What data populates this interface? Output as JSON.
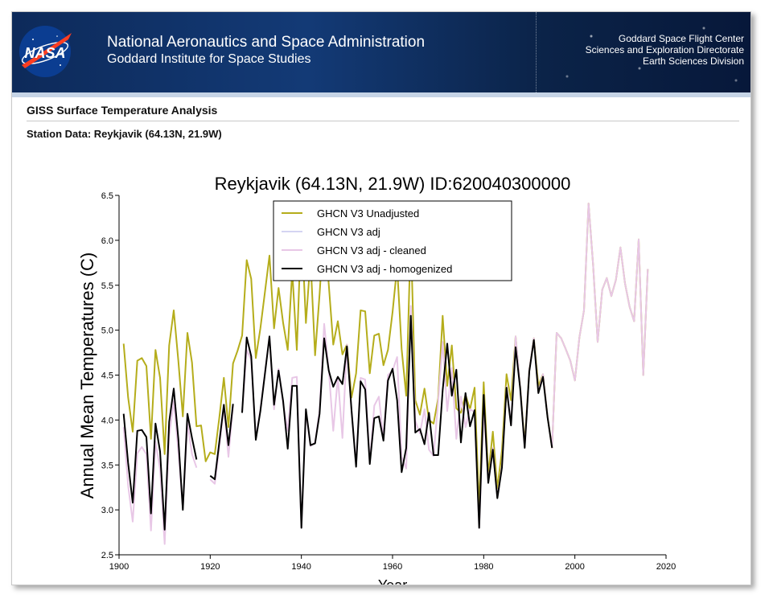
{
  "header": {
    "logo_text": "NASA",
    "org_line1": "National Aeronautics and Space Administration",
    "org_line2": "Goddard Institute for Space Studies",
    "right_line1": "Goddard Space Flight Center",
    "right_line2": "Sciences and Exploration Directorate",
    "right_line3": "Earth Sciences Division"
  },
  "page": {
    "section_title": "GISS Surface Temperature Analysis",
    "station_label": "Station Data: Reykjavik (64.13N, 21.9W)"
  },
  "colors": {
    "unadjusted": "#b5ad1b",
    "adj": "#d4d4f2",
    "cleaned": "#e8c7e6",
    "homogenized": "#000000"
  },
  "chart_data": {
    "type": "line",
    "title": "Reykjavik (64.13N, 21.9W) ID:620040300000",
    "xlabel": "Year",
    "ylabel": "Annual Mean Temperatures (C)",
    "xlim": [
      1900,
      2020
    ],
    "ylim": [
      2.5,
      6.5
    ],
    "xticks": [
      "1900",
      "1920",
      "1940",
      "1960",
      "1980",
      "2000",
      "2020"
    ],
    "yticks": [
      "2.5",
      "3.0",
      "3.5",
      "4.0",
      "4.5",
      "5.0",
      "5.5",
      "6.0",
      "6.5"
    ],
    "legend_position": "top-center",
    "series": [
      {
        "name": "GHCN V3 Unadjusted",
        "color": "#b5ad1b",
        "width": 2,
        "x": [
          1901,
          1902,
          1903,
          1904,
          1905,
          1906,
          1907,
          1908,
          1909,
          1910,
          1911,
          1912,
          1913,
          1914,
          1915,
          1916,
          1917,
          1918,
          1919,
          1920,
          1921,
          1922,
          1923,
          1924,
          1925,
          1926,
          1927,
          1928,
          1929,
          1930,
          1931,
          1932,
          1933,
          1934,
          1935,
          1936,
          1937,
          1938,
          1939,
          1940,
          1941,
          1942,
          1943,
          1944,
          1945,
          1946,
          1947,
          1948,
          1949,
          1950,
          1951,
          1952,
          1953,
          1954,
          1955,
          1956,
          1957,
          1958,
          1959,
          1960,
          1961,
          1962,
          1963,
          1964,
          1965,
          1966,
          1967,
          1968,
          1969,
          1970,
          1971,
          1972,
          1973,
          1974,
          1975,
          1976,
          1977,
          1978,
          1979,
          1980,
          1981,
          1982,
          1983,
          1984,
          1985,
          1986,
          1987,
          1988,
          1989,
          1990,
          1991,
          1992,
          1993,
          1994,
          1995,
          1996,
          1997,
          1998,
          1999,
          2000,
          2001,
          2002,
          2003,
          2004,
          2005,
          2006,
          2007,
          2008,
          2009,
          2010,
          2011,
          2012,
          2013,
          2014,
          2015,
          2016
        ],
        "y": [
          4.85,
          4.25,
          3.87,
          4.66,
          4.69,
          4.6,
          3.79,
          4.78,
          4.47,
          3.62,
          4.83,
          5.22,
          4.66,
          4.04,
          4.97,
          4.64,
          3.93,
          3.94,
          3.54,
          3.64,
          3.62,
          4.03,
          4.47,
          3.92,
          4.63,
          4.77,
          4.94,
          5.78,
          5.57,
          4.69,
          5.02,
          5.42,
          5.83,
          5.02,
          5.47,
          5.08,
          4.78,
          5.66,
          4.78,
          6.2,
          5.08,
          5.8,
          4.72,
          5.4,
          6.2,
          5.51,
          4.84,
          5.1,
          4.73,
          4.84,
          4.25,
          4.52,
          5.22,
          5.21,
          4.52,
          4.94,
          4.96,
          4.61,
          4.78,
          5.2,
          5.71,
          4.79,
          4.27,
          6.07,
          4.22,
          4.06,
          4.35,
          4.0,
          3.96,
          4.24,
          5.16,
          4.38,
          4.83,
          4.13,
          4.08,
          4.28,
          4.12,
          4.36,
          3.01,
          4.42,
          3.39,
          3.87,
          3.24,
          3.66,
          4.51,
          4.22,
          4.93,
          4.37,
          3.74,
          4.56,
          4.91,
          4.38,
          4.51,
          4.04,
          3.69,
          4.97,
          4.91,
          4.79,
          4.66,
          4.44,
          4.92,
          5.22,
          6.41,
          5.73,
          4.87,
          5.45,
          5.58,
          5.38,
          5.56,
          5.92,
          5.52,
          5.26,
          5.1,
          6.01,
          4.5,
          5.68
        ]
      },
      {
        "name": "GHCN V3 adj",
        "color": "#d4d4f2",
        "width": 1.4,
        "x": [
          1901,
          1902,
          1903,
          1904,
          1905,
          1906,
          1907,
          1908,
          1909,
          1910,
          1911,
          1912,
          1913,
          1914,
          1915,
          1916,
          1917,
          1918,
          1919,
          1920,
          1921,
          1922,
          1923,
          1924,
          1925,
          1926,
          1927,
          1928,
          1929,
          1930,
          1931,
          1932,
          1933,
          1934,
          1935,
          1936,
          1937,
          1938,
          1939,
          1940,
          1941,
          1942,
          1943,
          1944,
          1945,
          1946,
          1947,
          1948,
          1949,
          1950,
          1951,
          1952,
          1953,
          1954,
          1955,
          1956,
          1957,
          1958,
          1959,
          1960,
          1961,
          1962,
          1963,
          1964,
          1965,
          1966,
          1967,
          1968,
          1969,
          1970,
          1971,
          1972,
          1973,
          1974,
          1975,
          1976,
          1977,
          1978,
          1979,
          1980,
          1981,
          1982,
          1983,
          1984,
          1985,
          1986,
          1987,
          1988,
          1989,
          1990,
          1991,
          1992,
          1993,
          1994,
          1995,
          1996,
          1997,
          1998,
          1999,
          2000,
          2001,
          2002,
          2003,
          2004,
          2005,
          2006,
          2007,
          2008,
          2009,
          2010,
          2011,
          2012,
          2013,
          2014,
          2015,
          2016
        ],
        "y": [
          3.92,
          3.27,
          2.87,
          3.63,
          3.7,
          3.62,
          2.77,
          3.76,
          3.45,
          2.62,
          3.82,
          4.21,
          3.65,
          3.02,
          3.97,
          3.62,
          3.47,
          null,
          null,
          3.34,
          3.29,
          3.7,
          4.14,
          3.59,
          4.16,
          null,
          4.1,
          4.78,
          4.67,
          3.79,
          4.12,
          4.52,
          4.93,
          4.12,
          4.57,
          4.18,
          3.88,
          4.47,
          4.48,
          2.8,
          4.1,
          3.71,
          3.75,
          4.11,
          5.07,
          4.56,
          3.88,
          4.48,
          3.8,
          4.84,
          4.1,
          3.5,
          4.47,
          4.45,
          3.52,
          4.16,
          4.26,
          3.79,
          4.5,
          4.55,
          4.7,
          3.59,
          3.46,
          5.27,
          3.99,
          3.85,
          4.12,
          3.67,
          3.6,
          4.2,
          4.87,
          4.1,
          4.58,
          3.79,
          4.26,
          3.92,
          4.12,
          4.09,
          2.8,
          4.14,
          3.31,
          3.69,
          3.14,
          3.5,
          4.37,
          3.95,
          4.93,
          4.37,
          3.7,
          4.56,
          4.91,
          4.31,
          4.51,
          4.04,
          3.69,
          4.97,
          4.91,
          4.79,
          4.66,
          4.44,
          4.92,
          5.22,
          6.41,
          5.73,
          4.87,
          5.45,
          5.58,
          5.38,
          5.56,
          5.92,
          5.52,
          5.26,
          5.1,
          6.01,
          4.5,
          5.68
        ]
      },
      {
        "name": "GHCN V3 adj - cleaned",
        "color": "#e8c7e6",
        "width": 2,
        "x": [
          1901,
          1902,
          1903,
          1904,
          1905,
          1906,
          1907,
          1908,
          1909,
          1910,
          1911,
          1912,
          1913,
          1914,
          1915,
          1916,
          1917,
          1918,
          1919,
          1920,
          1921,
          1922,
          1923,
          1924,
          1925,
          1926,
          1927,
          1928,
          1929,
          1930,
          1931,
          1932,
          1933,
          1934,
          1935,
          1936,
          1937,
          1938,
          1939,
          1940,
          1941,
          1942,
          1943,
          1944,
          1945,
          1946,
          1947,
          1948,
          1949,
          1950,
          1951,
          1952,
          1953,
          1954,
          1955,
          1956,
          1957,
          1958,
          1959,
          1960,
          1961,
          1962,
          1963,
          1964,
          1965,
          1966,
          1967,
          1968,
          1969,
          1970,
          1971,
          1972,
          1973,
          1974,
          1975,
          1976,
          1977,
          1978,
          1979,
          1980,
          1981,
          1982,
          1983,
          1984,
          1985,
          1986,
          1987,
          1988,
          1989,
          1990,
          1991,
          1992,
          1993,
          1994,
          1995,
          1996,
          1997,
          1998,
          1999,
          2000,
          2001,
          2002,
          2003,
          2004,
          2005,
          2006,
          2007,
          2008,
          2009,
          2010,
          2011,
          2012,
          2013,
          2014,
          2015,
          2016
        ],
        "y": [
          3.92,
          3.27,
          2.87,
          3.63,
          3.7,
          3.62,
          2.77,
          3.76,
          3.45,
          2.62,
          3.82,
          4.21,
          3.65,
          3.02,
          3.97,
          3.62,
          3.47,
          null,
          null,
          3.34,
          3.29,
          3.7,
          4.14,
          3.59,
          4.16,
          null,
          4.1,
          4.78,
          4.67,
          3.79,
          4.12,
          4.52,
          4.93,
          4.12,
          4.57,
          4.18,
          3.88,
          4.47,
          4.48,
          2.8,
          4.1,
          3.71,
          3.75,
          4.11,
          5.07,
          4.56,
          3.88,
          4.48,
          3.8,
          4.84,
          4.1,
          3.5,
          4.47,
          4.45,
          3.52,
          4.16,
          4.26,
          3.79,
          4.5,
          4.55,
          4.7,
          3.59,
          3.46,
          5.27,
          3.99,
          3.85,
          4.12,
          3.67,
          3.6,
          4.2,
          4.87,
          4.1,
          4.58,
          3.79,
          4.26,
          3.92,
          4.12,
          4.09,
          2.8,
          4.14,
          3.31,
          3.69,
          3.14,
          3.5,
          4.37,
          3.95,
          4.93,
          4.37,
          3.7,
          4.56,
          4.91,
          4.31,
          4.51,
          4.04,
          3.69,
          4.97,
          4.91,
          4.79,
          4.66,
          4.44,
          4.92,
          5.22,
          6.41,
          5.73,
          4.87,
          5.45,
          5.58,
          5.38,
          5.56,
          5.92,
          5.52,
          5.26,
          5.1,
          6.01,
          4.5,
          5.68
        ]
      },
      {
        "name": "GHCN V3 adj - homogenized",
        "color": "#000000",
        "width": 2,
        "x": [
          1901,
          1902,
          1903,
          1904,
          1905,
          1906,
          1907,
          1908,
          1909,
          1910,
          1911,
          1912,
          1913,
          1914,
          1915,
          1916,
          1917,
          1918,
          1919,
          1920,
          1921,
          1922,
          1923,
          1924,
          1925,
          1926,
          1927,
          1928,
          1929,
          1930,
          1931,
          1932,
          1933,
          1934,
          1935,
          1936,
          1937,
          1938,
          1939,
          1940,
          1941,
          1942,
          1943,
          1944,
          1945,
          1946,
          1947,
          1948,
          1949,
          1950,
          1951,
          1952,
          1953,
          1954,
          1955,
          1956,
          1957,
          1958,
          1959,
          1960,
          1961,
          1962,
          1963,
          1964,
          1965,
          1966,
          1967,
          1968,
          1969,
          1970,
          1971,
          1972,
          1973,
          1974,
          1975,
          1976,
          1977,
          1978,
          1979,
          1980,
          1981,
          1982,
          1983,
          1984,
          1985,
          1986,
          1987,
          1988,
          1989,
          1990,
          1991,
          1992,
          1993,
          1994,
          1995
        ],
        "y": [
          4.07,
          3.52,
          3.08,
          3.88,
          3.89,
          3.81,
          2.96,
          3.96,
          3.65,
          2.78,
          3.98,
          4.35,
          3.79,
          3.0,
          4.07,
          3.8,
          3.56,
          null,
          null,
          3.38,
          3.34,
          3.76,
          4.17,
          3.72,
          4.18,
          null,
          4.08,
          4.92,
          4.71,
          3.78,
          4.1,
          4.51,
          4.93,
          4.17,
          4.55,
          4.21,
          3.68,
          4.38,
          4.38,
          2.8,
          4.12,
          3.72,
          3.74,
          4.07,
          4.91,
          4.55,
          4.37,
          4.48,
          4.4,
          4.82,
          4.11,
          3.48,
          4.43,
          4.34,
          3.51,
          4.02,
          4.04,
          3.77,
          4.44,
          4.57,
          4.22,
          3.42,
          3.69,
          5.16,
          3.86,
          3.9,
          3.73,
          4.08,
          3.61,
          3.61,
          4.33,
          4.85,
          4.27,
          4.56,
          3.75,
          4.3,
          3.93,
          4.11,
          2.8,
          4.28,
          3.3,
          3.67,
          3.13,
          3.47,
          4.36,
          3.94,
          4.81,
          4.35,
          3.69,
          4.54,
          4.89,
          4.3,
          4.48,
          4.03,
          3.69
        ]
      }
    ]
  }
}
